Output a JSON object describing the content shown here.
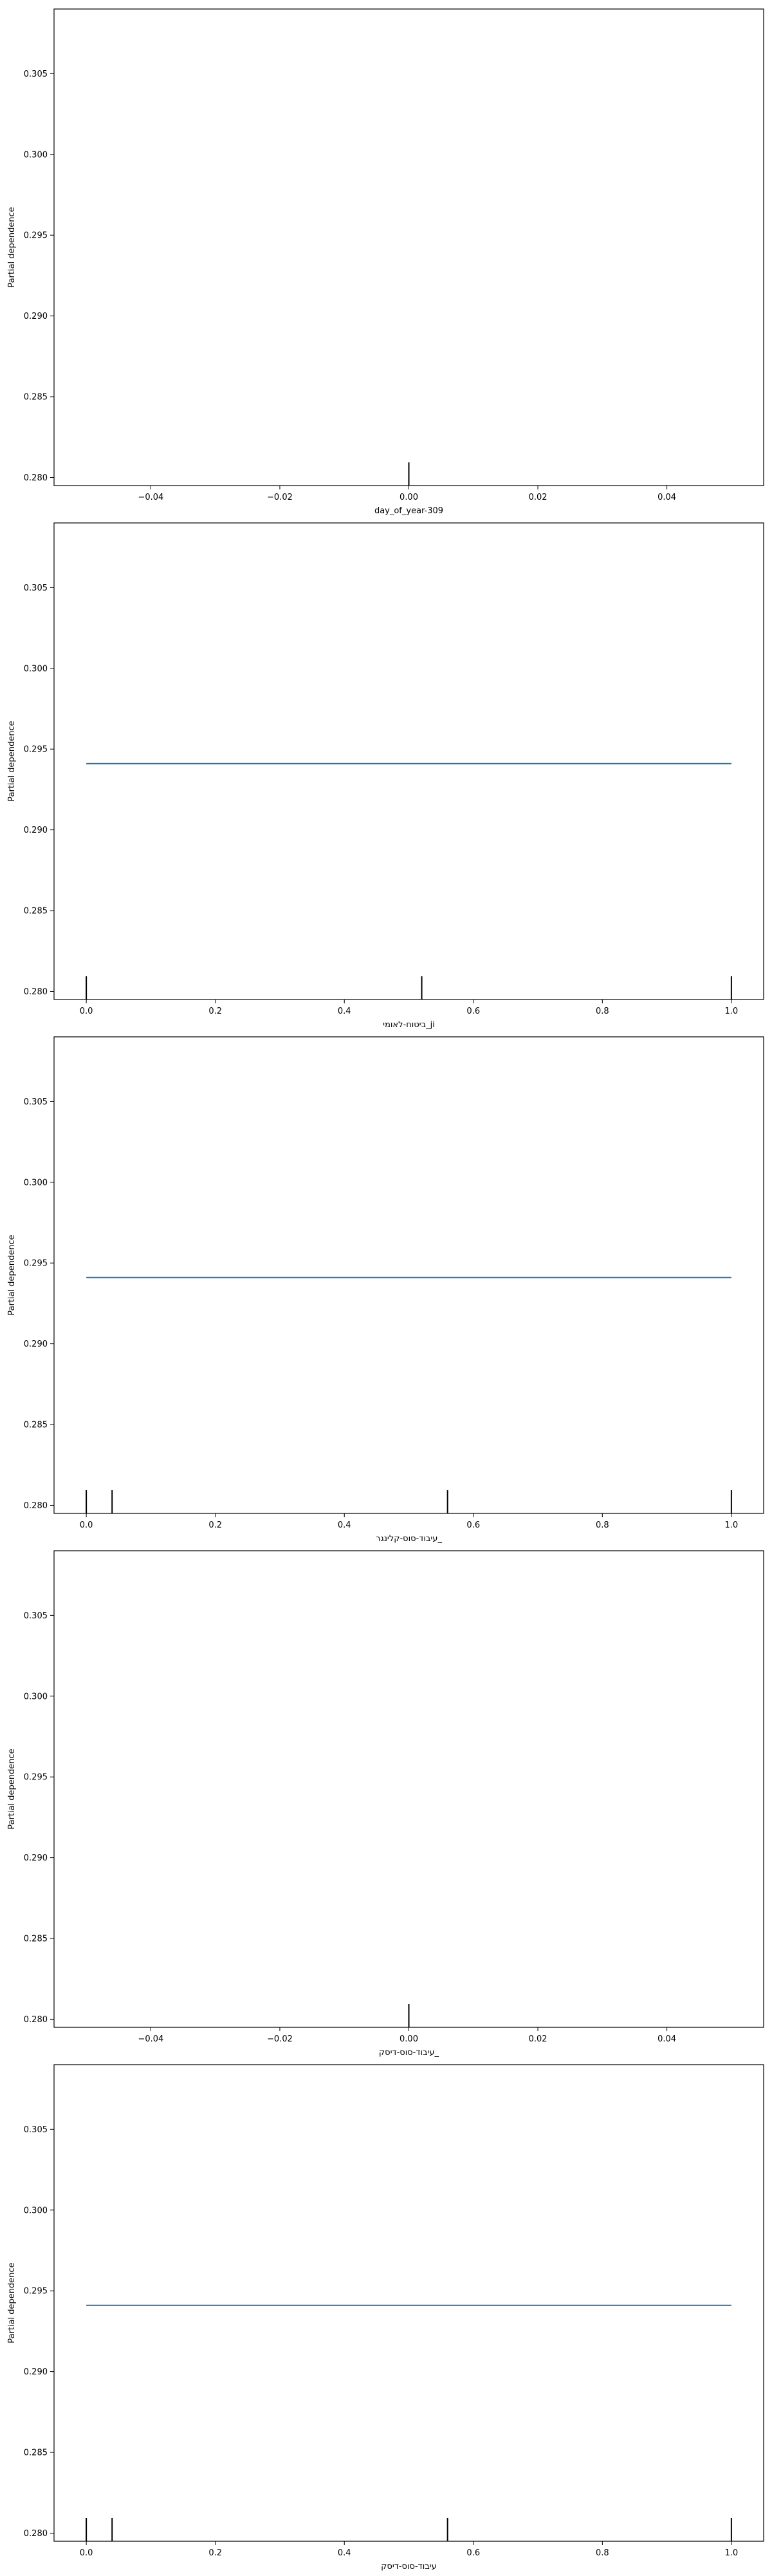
{
  "chart_data": [
    {
      "type": "line",
      "title": "",
      "xlabel": "day_of_year-309",
      "ylabel": "Partial dependence",
      "xlim": [
        -0.055,
        0.055
      ],
      "ylim": [
        0.2795,
        0.309
      ],
      "xticks": [
        -0.04,
        -0.02,
        0.0,
        0.02,
        0.04
      ],
      "xtick_labels": [
        "−0.04",
        "−0.02",
        "0.00",
        "0.02",
        "0.04"
      ],
      "yticks": [
        0.28,
        0.285,
        0.29,
        0.295,
        0.3,
        0.305
      ],
      "ytick_labels": [
        "0.280",
        "0.285",
        "0.290",
        "0.295",
        "0.300",
        "0.305"
      ],
      "series": [
        {
          "x": [],
          "y": []
        }
      ],
      "deciles": [
        0.0
      ],
      "grid": false
    },
    {
      "type": "line",
      "title": "",
      "xlabel": "ביטוח-לאומי_ji",
      "ylabel": "Partial dependence",
      "xlim": [
        -0.05,
        1.05
      ],
      "ylim": [
        0.2795,
        0.309
      ],
      "xticks": [
        0.0,
        0.2,
        0.4,
        0.6,
        0.8,
        1.0
      ],
      "xtick_labels": [
        "0.0",
        "0.2",
        "0.4",
        "0.6",
        "0.8",
        "1.0"
      ],
      "yticks": [
        0.28,
        0.285,
        0.29,
        0.295,
        0.3,
        0.305
      ],
      "ytick_labels": [
        "0.280",
        "0.285",
        "0.290",
        "0.295",
        "0.300",
        "0.305"
      ],
      "series": [
        {
          "x": [
            0.0,
            1.0
          ],
          "y": [
            0.2941,
            0.2941
          ]
        }
      ],
      "deciles": [
        0.0,
        0.52,
        1.0
      ],
      "grid": false
    },
    {
      "type": "line",
      "title": "",
      "xlabel": "עיבוד-סוס-קלינגר_",
      "ylabel": "Partial dependence",
      "xlim": [
        -0.05,
        1.05
      ],
      "ylim": [
        0.2795,
        0.309
      ],
      "xticks": [
        0.0,
        0.2,
        0.4,
        0.6,
        0.8,
        1.0
      ],
      "xtick_labels": [
        "0.0",
        "0.2",
        "0.4",
        "0.6",
        "0.8",
        "1.0"
      ],
      "yticks": [
        0.28,
        0.285,
        0.29,
        0.295,
        0.3,
        0.305
      ],
      "ytick_labels": [
        "0.280",
        "0.285",
        "0.290",
        "0.295",
        "0.300",
        "0.305"
      ],
      "series": [
        {
          "x": [
            0.0,
            1.0
          ],
          "y": [
            0.2941,
            0.2941
          ]
        }
      ],
      "deciles": [
        0.0,
        0.04,
        0.56,
        1.0
      ],
      "grid": false
    },
    {
      "type": "line",
      "title": "",
      "xlabel": "עיבוד-סוס-דיסק_",
      "ylabel": "Partial dependence",
      "xlim": [
        -0.055,
        0.055
      ],
      "ylim": [
        0.2795,
        0.309
      ],
      "xticks": [
        -0.04,
        -0.02,
        0.0,
        0.02,
        0.04
      ],
      "xtick_labels": [
        "−0.04",
        "−0.02",
        "0.00",
        "0.02",
        "0.04"
      ],
      "yticks": [
        0.28,
        0.285,
        0.29,
        0.295,
        0.3,
        0.305
      ],
      "ytick_labels": [
        "0.280",
        "0.285",
        "0.290",
        "0.295",
        "0.300",
        "0.305"
      ],
      "series": [
        {
          "x": [],
          "y": []
        }
      ],
      "deciles": [
        0.0
      ],
      "grid": false
    },
    {
      "type": "line",
      "title": "",
      "xlabel": "עיבוד-סוס-דיסק",
      "ylabel": "Partial dependence",
      "xlim": [
        -0.05,
        1.05
      ],
      "ylim": [
        0.2795,
        0.309
      ],
      "xticks": [
        0.0,
        0.2,
        0.4,
        0.6,
        0.8,
        1.0
      ],
      "xtick_labels": [
        "0.0",
        "0.2",
        "0.4",
        "0.6",
        "0.8",
        "1.0"
      ],
      "yticks": [
        0.28,
        0.285,
        0.29,
        0.295,
        0.3,
        0.305
      ],
      "ytick_labels": [
        "0.280",
        "0.285",
        "0.290",
        "0.295",
        "0.300",
        "0.305"
      ],
      "series": [
        {
          "x": [
            0.0,
            1.0
          ],
          "y": [
            0.2941,
            0.2941
          ]
        }
      ],
      "deciles": [
        0.0,
        0.04,
        0.56,
        1.0
      ],
      "grid": false
    }
  ],
  "colors": {
    "line": "#1f77b4",
    "axes": "#000000",
    "background": "#ffffff"
  }
}
